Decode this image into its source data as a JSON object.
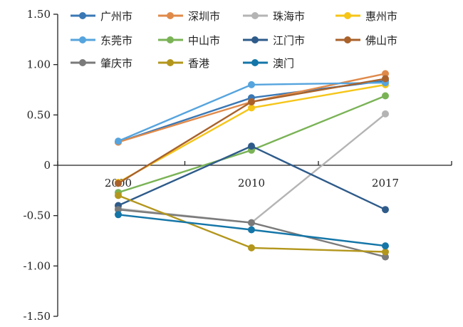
{
  "chart_data": {
    "type": "line",
    "x": [
      "2000",
      "2010",
      "2017"
    ],
    "ylim": [
      -1.5,
      1.5
    ],
    "yticks": [
      {
        "value": 1.5,
        "label": "1.50"
      },
      {
        "value": 1.0,
        "label": "1.00"
      },
      {
        "value": 0.5,
        "label": "0.50"
      },
      {
        "value": 0.0,
        "label": "0"
      },
      {
        "value": -0.5,
        "label": "-0.50"
      },
      {
        "value": -1.0,
        "label": "-1.00"
      },
      {
        "value": -1.5,
        "label": "-1.50"
      }
    ],
    "grid": false,
    "legend_position": "top-left",
    "series": [
      {
        "name": "广州市",
        "color": "#3a78b5",
        "values": [
          0.23,
          0.67,
          0.84
        ]
      },
      {
        "name": "深圳市",
        "color": "#e08a4a",
        "values": [
          0.23,
          0.63,
          0.91
        ]
      },
      {
        "name": "珠海市",
        "color": "#b4b4b4",
        "values": [
          -0.43,
          -0.57,
          0.51
        ]
      },
      {
        "name": "惠州市",
        "color": "#f5c518",
        "values": [
          -0.17,
          0.57,
          0.8
        ]
      },
      {
        "name": "东莞市",
        "color": "#55a4de",
        "values": [
          0.24,
          0.8,
          0.82
        ]
      },
      {
        "name": "中山市",
        "color": "#7ab356",
        "values": [
          -0.27,
          0.15,
          0.69
        ]
      },
      {
        "name": "江门市",
        "color": "#2e5b8a",
        "values": [
          -0.4,
          0.19,
          -0.44
        ]
      },
      {
        "name": "佛山市",
        "color": "#a9622b",
        "values": [
          -0.18,
          0.63,
          0.86
        ]
      },
      {
        "name": "肇庆市",
        "color": "#7a7a7a",
        "values": [
          -0.44,
          -0.57,
          -0.91
        ]
      },
      {
        "name": "香港",
        "color": "#b3961c",
        "values": [
          -0.3,
          -0.82,
          -0.86
        ]
      },
      {
        "name": "澳门",
        "color": "#1476a8",
        "values": [
          -0.49,
          -0.64,
          -0.8
        ]
      }
    ]
  }
}
